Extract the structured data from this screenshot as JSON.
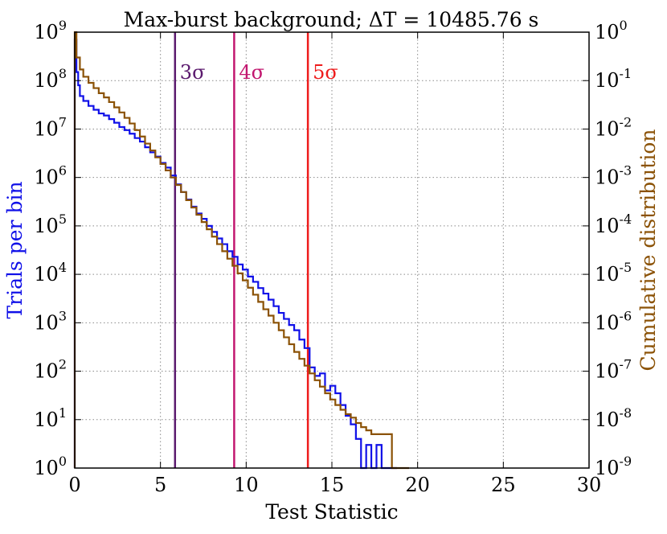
{
  "chart_data": {
    "type": "line",
    "title": "Max-burst background; ΔT = 10485.76 s",
    "xlabel": "Test Statistic",
    "ylabel_left": "Trials per bin",
    "ylabel_right": "Cumulative distribution",
    "xlim": [
      0,
      30
    ],
    "ylim_left": [
      1,
      1000000000
    ],
    "ylim_right": [
      1e-09,
      1
    ],
    "yscale": "log",
    "grid": true,
    "x_ticks": [
      "0",
      "5",
      "10",
      "15",
      "20",
      "25",
      "30"
    ],
    "y_left_ticks": [
      {
        "base": "10",
        "exp": "0"
      },
      {
        "base": "10",
        "exp": "1"
      },
      {
        "base": "10",
        "exp": "2"
      },
      {
        "base": "10",
        "exp": "3"
      },
      {
        "base": "10",
        "exp": "4"
      },
      {
        "base": "10",
        "exp": "5"
      },
      {
        "base": "10",
        "exp": "6"
      },
      {
        "base": "10",
        "exp": "7"
      },
      {
        "base": "10",
        "exp": "8"
      },
      {
        "base": "10",
        "exp": "9"
      }
    ],
    "y_right_ticks": [
      {
        "base": "10",
        "exp": "-9"
      },
      {
        "base": "10",
        "exp": "-8"
      },
      {
        "base": "10",
        "exp": "-7"
      },
      {
        "base": "10",
        "exp": "-6"
      },
      {
        "base": "10",
        "exp": "-5"
      },
      {
        "base": "10",
        "exp": "-4"
      },
      {
        "base": "10",
        "exp": "-3"
      },
      {
        "base": "10",
        "exp": "-2"
      },
      {
        "base": "10",
        "exp": "-1"
      },
      {
        "base": "10",
        "exp": "0"
      }
    ],
    "sigma_lines": [
      {
        "label": "3σ",
        "x": 5.85,
        "color": "#5b1a6e"
      },
      {
        "label": "4σ",
        "x": 9.3,
        "color": "#c2176f"
      },
      {
        "label": "5σ",
        "x": 13.6,
        "color": "#ee1c1c"
      }
    ],
    "series": [
      {
        "axis": "left",
        "color": "#1010e8",
        "edges_x": [
          0,
          0.1,
          0.2,
          0.3,
          0.5,
          0.8,
          1.1,
          1.4,
          1.7,
          2.0,
          2.3,
          2.6,
          2.9,
          3.2,
          3.5,
          3.8,
          4.1,
          4.4,
          4.7,
          5.0,
          5.3,
          5.6,
          5.9,
          6.2,
          6.5,
          6.8,
          7.1,
          7.4,
          7.7,
          8.0,
          8.3,
          8.6,
          8.9,
          9.2,
          9.5,
          9.8,
          10.1,
          10.4,
          10.7,
          11.0,
          11.3,
          11.6,
          11.9,
          12.2,
          12.5,
          12.8,
          13.1,
          13.4,
          13.7,
          14.0,
          14.3,
          14.6,
          14.9,
          15.2,
          15.5,
          15.8,
          16.1,
          16.4,
          16.7,
          17.0,
          17.3,
          17.6,
          17.9,
          18.2,
          18.5,
          18.8
        ],
        "counts": [
          700000000,
          150000000,
          80000000,
          48000000,
          38000000,
          30000000,
          25000000,
          21000000,
          19000000,
          16000000,
          13500000,
          11000000,
          9500000,
          8000000,
          6500000,
          5500000,
          4200000,
          3300000,
          2700000,
          2000000,
          1600000,
          1100000,
          720000,
          500000,
          350000,
          250000,
          180000,
          140000,
          100000,
          75000,
          55000,
          42000,
          30000,
          23000,
          16000,
          12500,
          9000,
          7000,
          5200,
          4000,
          3000,
          2200,
          1600,
          1200,
          900,
          700,
          450,
          300,
          120,
          80,
          90,
          40,
          50,
          35,
          20,
          12,
          8,
          4,
          1,
          3,
          1,
          3,
          0.5,
          0.5,
          0.5
        ]
      },
      {
        "axis": "right",
        "color": "#8b5206",
        "edges_x": [
          0,
          0.1,
          0.3,
          0.5,
          0.8,
          1.1,
          1.4,
          1.7,
          2.0,
          2.3,
          2.6,
          2.9,
          3.2,
          3.5,
          3.8,
          4.1,
          4.4,
          4.7,
          5.0,
          5.3,
          5.6,
          5.9,
          6.2,
          6.5,
          6.8,
          7.1,
          7.4,
          7.7,
          8.0,
          8.3,
          8.6,
          8.9,
          9.2,
          9.5,
          9.8,
          10.1,
          10.4,
          10.7,
          11.0,
          11.3,
          11.6,
          11.9,
          12.2,
          12.5,
          12.8,
          13.1,
          13.4,
          13.7,
          14.0,
          14.3,
          14.6,
          14.9,
          15.2,
          15.5,
          15.8,
          16.1,
          16.4,
          16.7,
          17.0,
          17.3,
          17.6,
          17.9,
          18.2,
          18.5,
          18.9,
          19.5
        ],
        "values": [
          1.0,
          0.3,
          0.17,
          0.12,
          0.09,
          0.07,
          0.055,
          0.045,
          0.036,
          0.028,
          0.022,
          0.017,
          0.013,
          0.0095,
          0.007,
          0.005,
          0.0036,
          0.0026,
          0.0019,
          0.0014,
          0.001,
          0.0007,
          0.0005,
          0.00034,
          0.00024,
          0.00017,
          0.00012,
          8.5e-05,
          6e-05,
          4.2e-05,
          3e-05,
          2.1e-05,
          1.5e-05,
          1.05e-05,
          7.5e-06,
          5.3e-06,
          3.8e-06,
          2.7e-06,
          1.9e-06,
          1.4e-06,
          1e-06,
          7e-07,
          5e-07,
          3.6e-07,
          2.5e-07,
          1.8e-07,
          1.3e-07,
          9e-08,
          6.5e-08,
          4.8e-08,
          3.5e-08,
          2.6e-08,
          2e-08,
          1.6e-08,
          1.3e-08,
          1.1e-08,
          8.5e-09,
          7e-09,
          6e-09,
          5e-09,
          5e-09,
          5e-09,
          5e-09,
          9e-10,
          9e-10
        ]
      }
    ]
  }
}
